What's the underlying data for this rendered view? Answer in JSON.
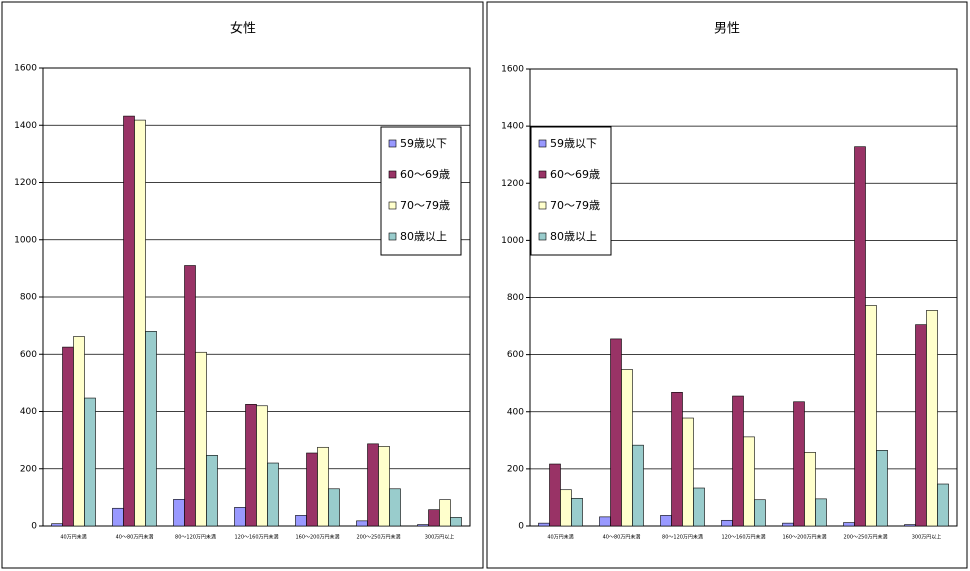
{
  "chart_data": [
    {
      "type": "bar",
      "title": "女性",
      "categories": [
        "40万円未満",
        "40～80万円未満",
        "80～120万円未満",
        "120～160万円未満",
        "160～200万円未満",
        "200～250万円未満",
        "300万円以上"
      ],
      "series": [
        {
          "name": "59歳以下",
          "color": "#9999ff",
          "values": [
            8,
            62,
            93,
            65,
            37,
            18,
            5
          ]
        },
        {
          "name": "60～69歳",
          "color": "#993366",
          "values": [
            625,
            1432,
            910,
            425,
            255,
            287,
            57
          ]
        },
        {
          "name": "70～79歳",
          "color": "#ffffcc",
          "values": [
            662,
            1418,
            607,
            420,
            275,
            278,
            92
          ]
        },
        {
          "name": "80歳以上",
          "color": "#99cccc",
          "values": [
            447,
            680,
            247,
            220,
            130,
            130,
            30
          ]
        }
      ],
      "ylim": [
        0,
        1600
      ],
      "yticks": [
        0,
        200,
        400,
        600,
        800,
        1000,
        1200,
        1400,
        1600
      ],
      "grid": true,
      "legend": "upper right"
    },
    {
      "type": "bar",
      "title": "男性",
      "categories": [
        "40万円未満",
        "40～80万円未満",
        "80～120万円未満",
        "120～160万円未満",
        "160～200万円未満",
        "200～250万円未満",
        "300万円以上"
      ],
      "series": [
        {
          "name": "59歳以下",
          "color": "#9999ff",
          "values": [
            10,
            32,
            37,
            20,
            10,
            12,
            5
          ]
        },
        {
          "name": "60～69歳",
          "color": "#993366",
          "values": [
            217,
            655,
            468,
            455,
            435,
            1328,
            705
          ]
        },
        {
          "name": "70～79歳",
          "color": "#ffffcc",
          "values": [
            127,
            548,
            378,
            312,
            258,
            772,
            755
          ]
        },
        {
          "name": "80歳以上",
          "color": "#99cccc",
          "values": [
            97,
            283,
            133,
            92,
            95,
            265,
            147
          ]
        }
      ],
      "ylim": [
        0,
        1600
      ],
      "yticks": [
        0,
        200,
        400,
        600,
        800,
        1000,
        1200,
        1400,
        1600
      ],
      "grid": true,
      "legend": "upper left"
    }
  ]
}
